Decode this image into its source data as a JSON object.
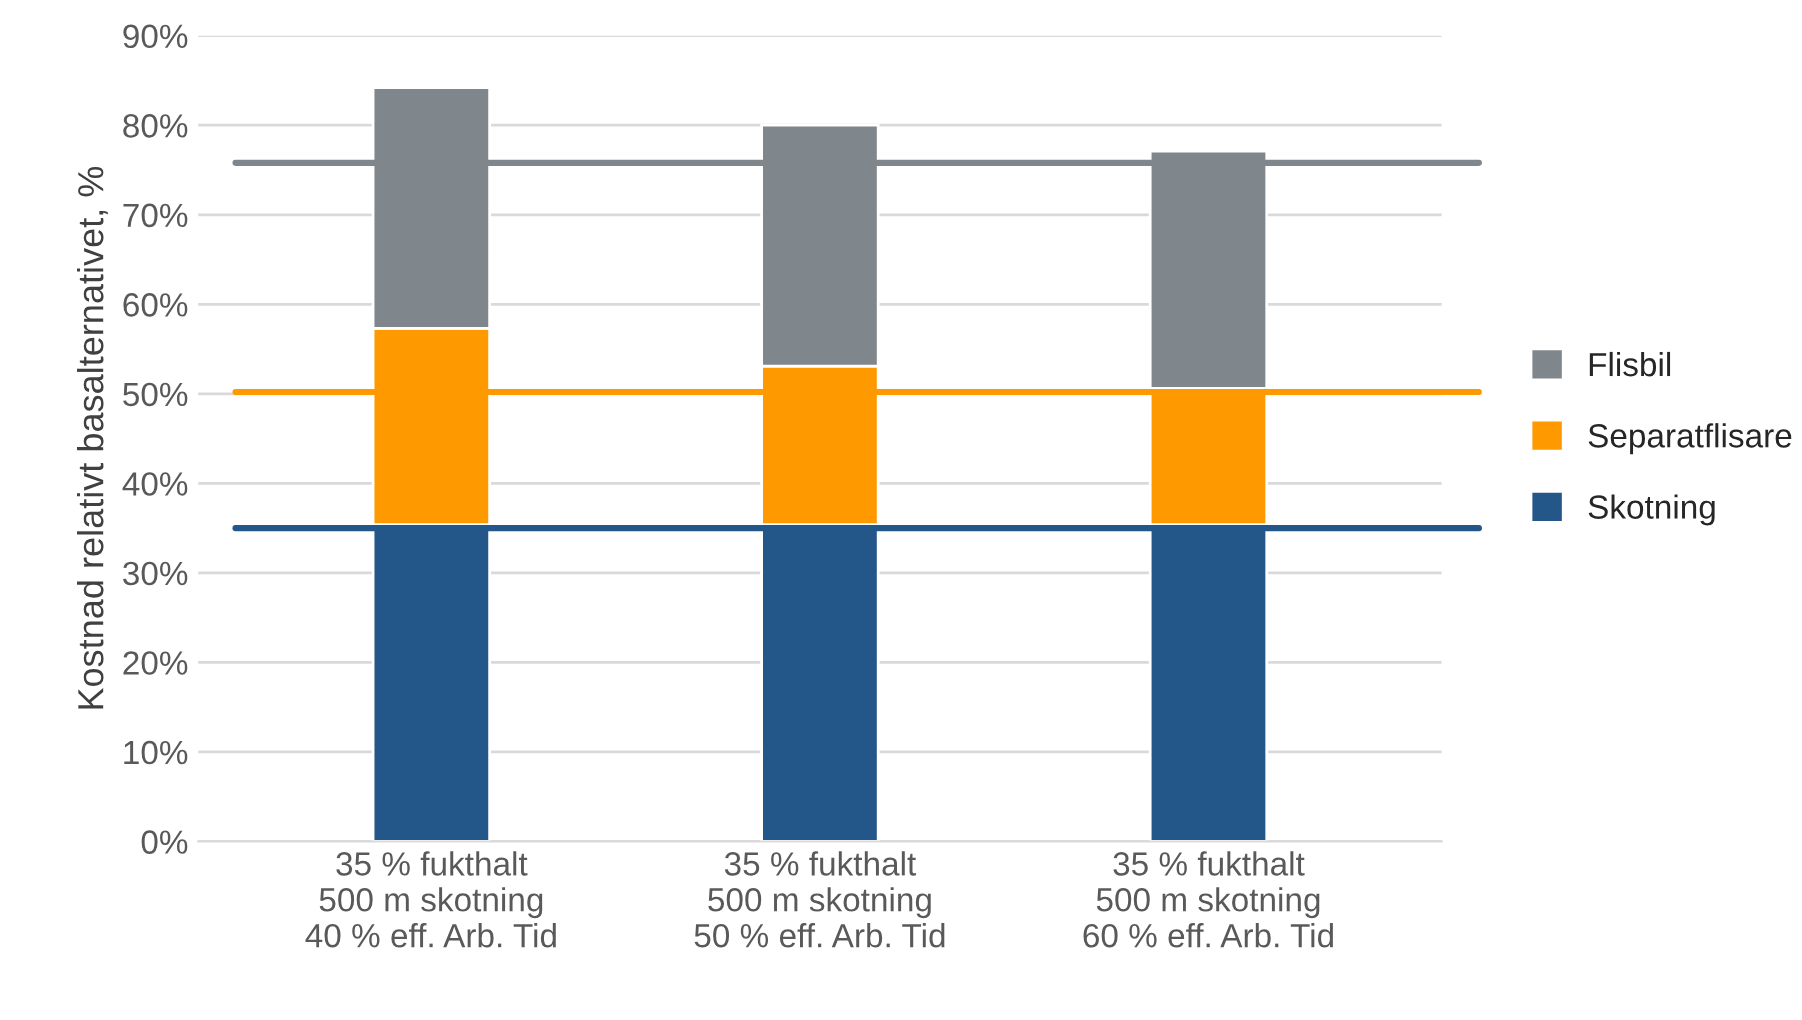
{
  "chart_data": {
    "type": "bar",
    "stacked": true,
    "ylabel": "Kostnad relativt basalternativet, %",
    "categories": [
      "35 % fukthalt\n500 m skotning\n40 % eff. Arb. Tid",
      "35 % fukthalt\n500 m skotning\n50 % eff. Arb. Tid",
      "35 % fukthalt\n500 m skotning\n60 % eff. Arb. Tid"
    ],
    "series": [
      {
        "name": "Skotning",
        "color": "#235789",
        "values": [
          35.4,
          35.4,
          35.4
        ]
      },
      {
        "name": "Separatflisare",
        "color": "#ff9900",
        "values": [
          21.9,
          17.7,
          15.2
        ]
      },
      {
        "name": "Flisbil",
        "color": "#80878c",
        "values": [
          26.9,
          26.9,
          26.5
        ]
      }
    ],
    "ylim": [
      0,
      90
    ],
    "yticks": [
      {
        "value": 0,
        "label": "0%"
      },
      {
        "value": 10,
        "label": "10%"
      },
      {
        "value": 20,
        "label": "20%"
      },
      {
        "value": 30,
        "label": "30%"
      },
      {
        "value": 40,
        "label": "40%"
      },
      {
        "value": 50,
        "label": "50%"
      },
      {
        "value": 60,
        "label": "60%"
      },
      {
        "value": 70,
        "label": "70%"
      },
      {
        "value": 80,
        "label": "80%"
      },
      {
        "value": 90,
        "label": "90%"
      }
    ],
    "ref_lines": [
      {
        "axis": "y",
        "value": 75.8,
        "color": "#80878c"
      },
      {
        "axis": "y",
        "value": 50.2,
        "color": "#ff9900"
      },
      {
        "axis": "y",
        "value": 35.0,
        "color": "#235789"
      }
    ],
    "grid": "y",
    "legend": "right"
  }
}
